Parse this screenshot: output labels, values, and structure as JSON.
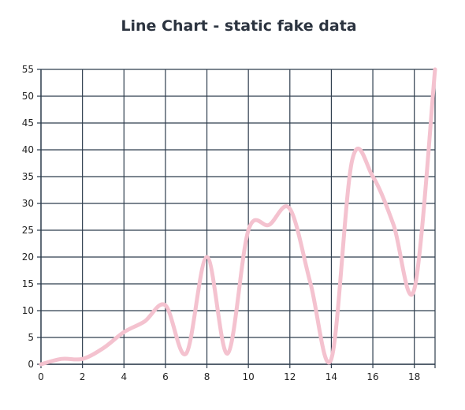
{
  "chart_data": {
    "type": "line",
    "title": "Line Chart - static fake data",
    "xlabel": "",
    "ylabel": "",
    "xlim": [
      0,
      19
    ],
    "ylim": [
      0,
      55
    ],
    "x_ticks": [
      0,
      2,
      4,
      6,
      8,
      10,
      12,
      14,
      16,
      18
    ],
    "y_ticks": [
      0,
      5,
      10,
      15,
      20,
      25,
      30,
      35,
      40,
      45,
      50,
      55
    ],
    "grid": true,
    "legend": "none",
    "series": [
      {
        "color": "#f4c2cf",
        "x": [
          0,
          1,
          2,
          3,
          4,
          5,
          6,
          7,
          8,
          9,
          10,
          11,
          12,
          13,
          14,
          15,
          16,
          17,
          18,
          19
        ],
        "values": [
          0,
          1,
          1,
          3,
          6,
          8,
          11,
          2,
          20,
          2,
          25,
          26,
          29,
          15,
          1,
          38,
          35,
          26,
          14,
          55
        ]
      }
    ]
  },
  "colors": {
    "grid": "#2f3e4e",
    "line": "#f4c2cf",
    "title": "#2c3440"
  }
}
